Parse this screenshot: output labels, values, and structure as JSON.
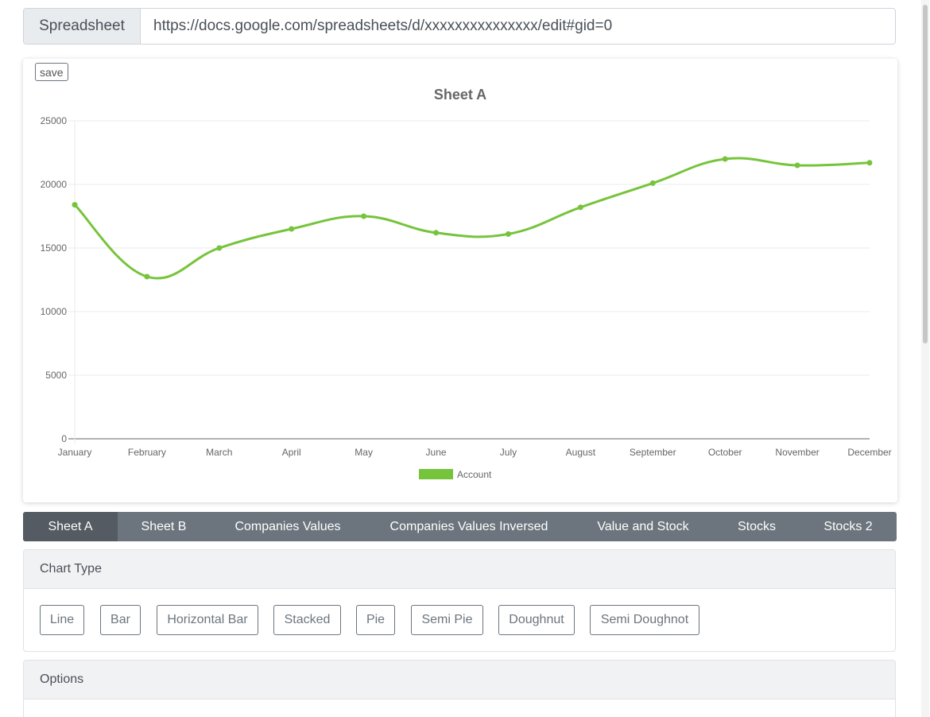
{
  "spreadsheet": {
    "label": "Spreadsheet",
    "url": "https://docs.google.com/spreadsheets/d/xxxxxxxxxxxxxxx/edit#gid=0"
  },
  "chart_card": {
    "save_label": "save"
  },
  "chart_data": {
    "type": "line",
    "title": "Sheet A",
    "categories": [
      "January",
      "February",
      "March",
      "April",
      "May",
      "June",
      "July",
      "August",
      "September",
      "October",
      "November",
      "December"
    ],
    "series": [
      {
        "name": "Account",
        "color": "#76c43b",
        "values": [
          18400,
          12750,
          15000,
          16500,
          17500,
          16200,
          16100,
          18200,
          20100,
          22000,
          21500,
          21700
        ]
      }
    ],
    "ylim": [
      0,
      25000
    ],
    "yticks": [
      0,
      5000,
      10000,
      15000,
      20000,
      25000
    ],
    "grid": true,
    "legend": "bottom",
    "xlabel": "",
    "ylabel": ""
  },
  "tabs": [
    {
      "label": "Sheet A",
      "active": true
    },
    {
      "label": "Sheet B",
      "active": false
    },
    {
      "label": "Companies Values",
      "active": false
    },
    {
      "label": "Companies Values Inversed",
      "active": false
    },
    {
      "label": "Value and Stock",
      "active": false
    },
    {
      "label": "Stocks",
      "active": false
    },
    {
      "label": "Stocks 2",
      "active": false
    }
  ],
  "chart_type_panel": {
    "title": "Chart Type",
    "buttons": [
      "Line",
      "Bar",
      "Horizontal Bar",
      "Stacked",
      "Pie",
      "Semi Pie",
      "Doughnut",
      "Semi Doughnot"
    ]
  },
  "options_panel": {
    "title": "Options"
  }
}
